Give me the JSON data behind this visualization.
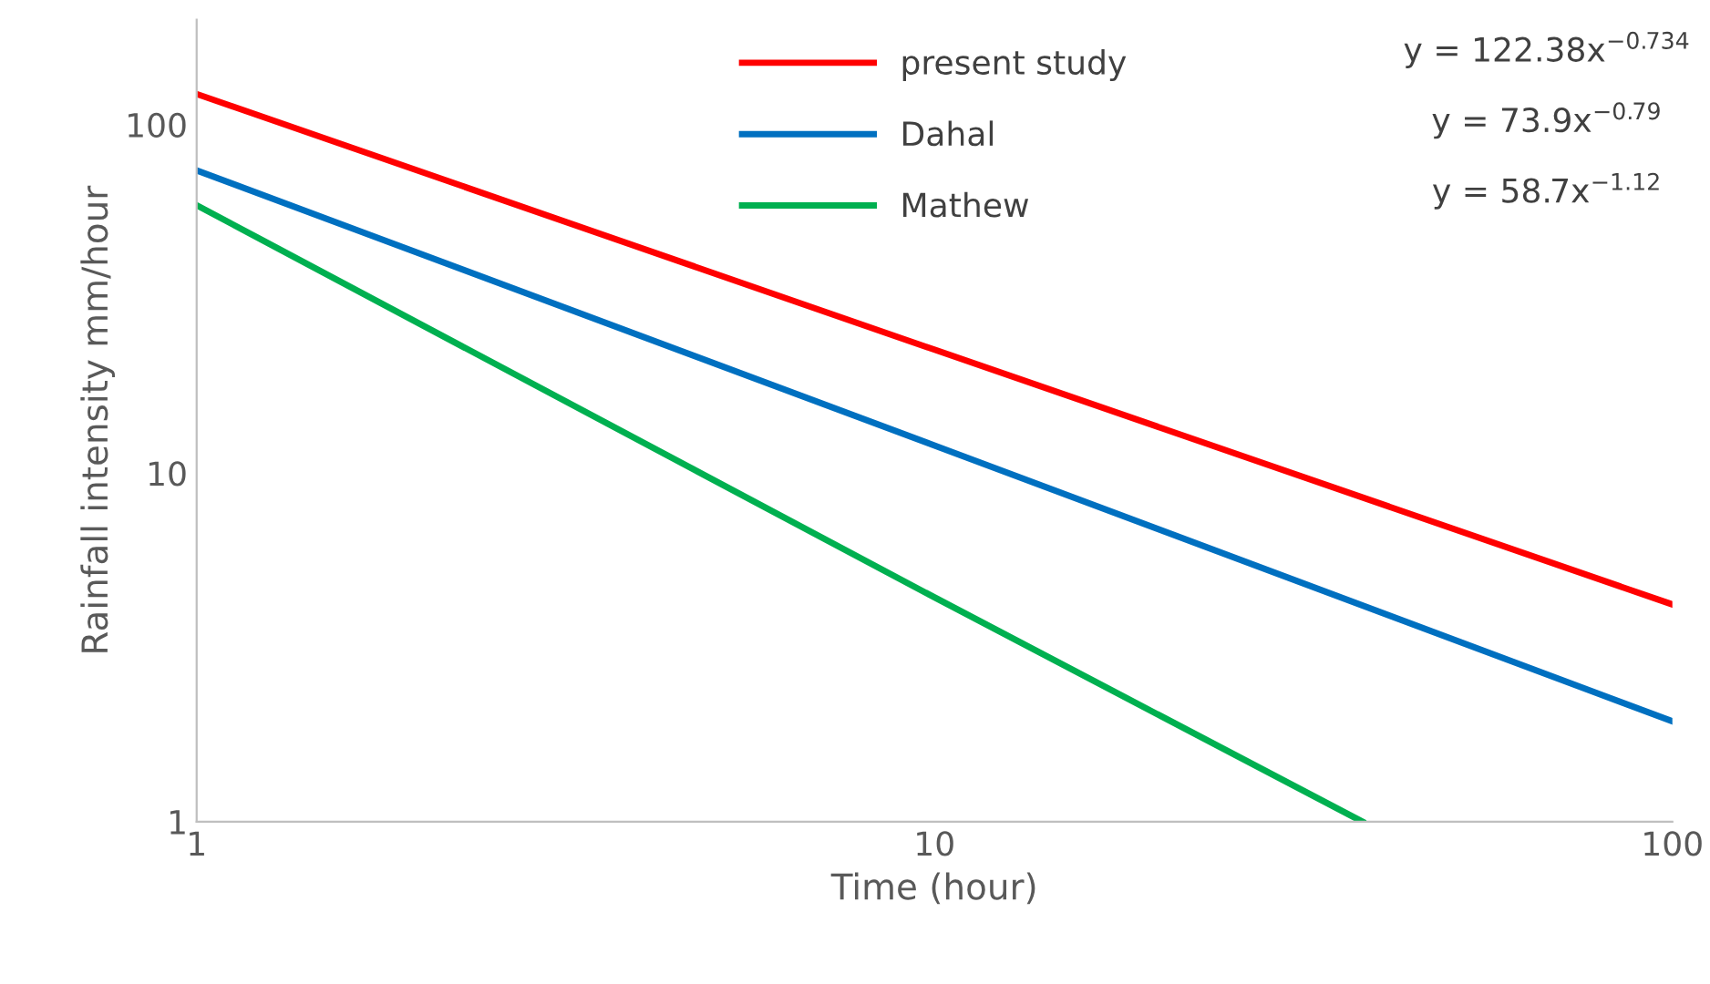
{
  "chart_data": {
    "type": "line",
    "xlabel": "Time (hour)",
    "ylabel": "Rainfall intensity mm/hour",
    "log": "xy",
    "xlim": [
      1,
      100
    ],
    "ylim": [
      1,
      200
    ],
    "xticks": [
      1,
      10,
      100
    ],
    "yticks": [
      1,
      10,
      100
    ],
    "grid": false,
    "legend": "top",
    "marker": "none",
    "line_style": "solid",
    "series": [
      {
        "name": "present study",
        "color": "#ff0000",
        "x": [
          1,
          10,
          100
        ],
        "values": [
          122.4,
          22.6,
          4.2
        ]
      },
      {
        "name": "Dahal",
        "color": "#0070c0",
        "x": [
          1,
          10,
          100
        ],
        "values": [
          73.9,
          12.0,
          1.94
        ]
      },
      {
        "name": "Mathew",
        "color": "#00b050",
        "x": [
          1,
          10,
          38
        ],
        "values": [
          58.7,
          4.4,
          1
        ]
      }
    ],
    "annotations": [
      "y = 122.38x$^{−0.734}$",
      "y = 73.9x$^{−0.79}$",
      "y = 58.7x$^{−1.12}$"
    ]
  }
}
